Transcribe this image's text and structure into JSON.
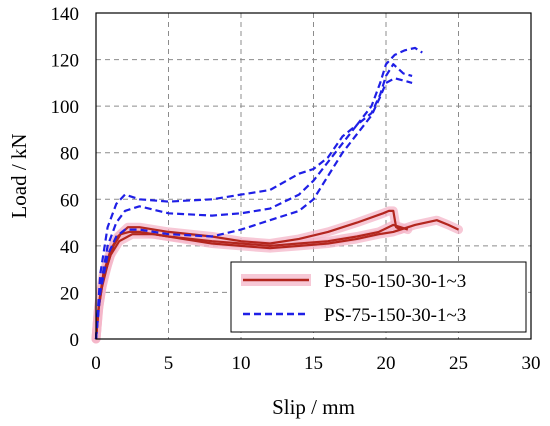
{
  "chart_data": {
    "type": "line",
    "xlabel": "Slip / mm",
    "ylabel": "Load / kN",
    "xlim": [
      0,
      30
    ],
    "ylim": [
      0,
      140
    ],
    "xticks": [
      0,
      5,
      10,
      15,
      20,
      25,
      30
    ],
    "yticks": [
      0,
      20,
      40,
      60,
      80,
      100,
      120,
      140
    ],
    "grid": true,
    "grid_style": "dashed",
    "legend_position": "bottom-right",
    "colors": {
      "ps50": "#c0392b",
      "ps50_band": "#f4b6c8",
      "ps75": "#1a1aff",
      "grid": "#8c8c8c"
    },
    "series": [
      {
        "name": "PS-50-150-30-1~3",
        "color": "#b3261e",
        "style": "solid",
        "curves": [
          [
            [
              0,
              0
            ],
            [
              0.15,
              12
            ],
            [
              0.4,
              22
            ],
            [
              0.8,
              32
            ],
            [
              1.2,
              40
            ],
            [
              1.7,
              45
            ],
            [
              2.3,
              46
            ],
            [
              3,
              46
            ],
            [
              5,
              44
            ],
            [
              8,
              42
            ],
            [
              10,
              41
            ],
            [
              12,
              40
            ],
            [
              14,
              41
            ],
            [
              16,
              42
            ],
            [
              18,
              44
            ],
            [
              19.5,
              46
            ],
            [
              20.5,
              49
            ],
            [
              21,
              48
            ],
            [
              21.5,
              47
            ]
          ],
          [
            [
              0,
              0
            ],
            [
              0.2,
              15
            ],
            [
              0.5,
              28
            ],
            [
              1,
              38
            ],
            [
              1.5,
              44
            ],
            [
              2.2,
              48
            ],
            [
              3,
              48
            ],
            [
              5,
              46
            ],
            [
              8,
              44
            ],
            [
              10,
              42
            ],
            [
              12,
              41
            ],
            [
              14,
              43
            ],
            [
              16,
              46
            ],
            [
              18,
              50
            ],
            [
              19.8,
              54
            ],
            [
              20.2,
              55
            ],
            [
              20.5,
              55
            ],
            [
              20.7,
              48
            ],
            [
              21,
              47
            ]
          ],
          [
            [
              0,
              0
            ],
            [
              0.2,
              14
            ],
            [
              0.5,
              26
            ],
            [
              1,
              36
            ],
            [
              1.6,
              42
            ],
            [
              2.5,
              45
            ],
            [
              4,
              45
            ],
            [
              6,
              43
            ],
            [
              8,
              41
            ],
            [
              10,
              40
            ],
            [
              12,
              39
            ],
            [
              14,
              40
            ],
            [
              16,
              41
            ],
            [
              18,
              43
            ],
            [
              19.5,
              45
            ],
            [
              20.5,
              46
            ],
            [
              22,
              49
            ],
            [
              23.5,
              51
            ],
            [
              24.3,
              49
            ],
            [
              25,
              47
            ]
          ]
        ]
      },
      {
        "name": "PS-75-150-30-1~3",
        "color": "#1f1fe6",
        "style": "dashed",
        "curves": [
          [
            [
              0,
              0
            ],
            [
              0.3,
              28
            ],
            [
              0.8,
              48
            ],
            [
              1.4,
              58
            ],
            [
              2,
              62
            ],
            [
              3,
              60
            ],
            [
              5,
              59
            ],
            [
              8,
              60
            ],
            [
              10,
              62
            ],
            [
              12,
              64
            ],
            [
              14,
              71
            ],
            [
              15,
              73
            ],
            [
              16,
              78
            ],
            [
              17,
              87
            ],
            [
              18,
              92
            ],
            [
              19,
              100
            ],
            [
              19.6,
              110
            ],
            [
              20,
              118
            ],
            [
              20.6,
              122
            ],
            [
              21.3,
              124
            ],
            [
              22,
              125
            ],
            [
              22.5,
              123
            ]
          ],
          [
            [
              0,
              0
            ],
            [
              0.3,
              22
            ],
            [
              0.8,
              40
            ],
            [
              1.4,
              50
            ],
            [
              2,
              55
            ],
            [
              3,
              57
            ],
            [
              5,
              54
            ],
            [
              8,
              53
            ],
            [
              10,
              54
            ],
            [
              12,
              56
            ],
            [
              14,
              62
            ],
            [
              15,
              68
            ],
            [
              16,
              76
            ],
            [
              17,
              84
            ],
            [
              18,
              92
            ],
            [
              19,
              97
            ],
            [
              19.6,
              105
            ],
            [
              20,
              113
            ],
            [
              20.5,
              118
            ],
            [
              21.2,
              114
            ],
            [
              21.8,
              113
            ]
          ],
          [
            [
              0,
              0
            ],
            [
              0.3,
              20
            ],
            [
              0.8,
              36
            ],
            [
              1.4,
              44
            ],
            [
              2,
              47
            ],
            [
              3,
              47
            ],
            [
              5,
              45
            ],
            [
              8,
              44
            ],
            [
              10,
              47
            ],
            [
              12,
              51
            ],
            [
              14,
              55
            ],
            [
              15,
              60
            ],
            [
              16,
              70
            ],
            [
              17,
              80
            ],
            [
              18,
              88
            ],
            [
              19,
              96
            ],
            [
              19.6,
              104
            ],
            [
              20,
              110
            ],
            [
              20.6,
              112
            ],
            [
              21.2,
              111
            ],
            [
              21.8,
              110
            ]
          ]
        ]
      }
    ]
  }
}
